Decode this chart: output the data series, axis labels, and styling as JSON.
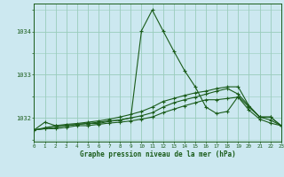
{
  "title": "Graphe pression niveau de la mer (hPa)",
  "bg_color": "#cce8f0",
  "grid_color": "#99ccbb",
  "line_color": "#1a5c1a",
  "ylim": [
    1031.45,
    1034.65
  ],
  "yticks": [
    1032,
    1033,
    1034
  ],
  "xlim": [
    0,
    23
  ],
  "xticks": [
    0,
    1,
    2,
    3,
    4,
    5,
    6,
    7,
    8,
    9,
    10,
    11,
    12,
    13,
    14,
    15,
    16,
    17,
    18,
    19,
    20,
    21,
    22,
    23
  ],
  "series1": [
    1031.72,
    1031.9,
    1031.82,
    1031.82,
    1031.85,
    1031.87,
    1031.9,
    1031.93,
    1031.95,
    1032.0,
    1034.02,
    1034.5,
    1034.02,
    1033.55,
    1033.1,
    1032.72,
    1032.25,
    1032.1,
    1032.15,
    1032.5,
    1032.25,
    1032.02,
    1032.02,
    1031.82
  ],
  "series2": [
    1031.72,
    1031.77,
    1031.82,
    1031.85,
    1031.87,
    1031.9,
    1031.93,
    1031.97,
    1032.02,
    1032.08,
    1032.15,
    1032.25,
    1032.38,
    1032.45,
    1032.52,
    1032.58,
    1032.62,
    1032.68,
    1032.72,
    1032.72,
    1032.28,
    1032.02,
    1032.02,
    1031.82
  ],
  "series3": [
    1031.72,
    1031.75,
    1031.78,
    1031.82,
    1031.85,
    1031.87,
    1031.87,
    1031.92,
    1031.95,
    1032.0,
    1032.05,
    1032.12,
    1032.25,
    1032.35,
    1032.42,
    1032.48,
    1032.55,
    1032.62,
    1032.68,
    1032.55,
    1032.28,
    1032.02,
    1031.95,
    1031.82
  ],
  "series4": [
    1031.72,
    1031.75,
    1031.75,
    1031.78,
    1031.82,
    1031.82,
    1031.85,
    1031.88,
    1031.9,
    1031.93,
    1031.97,
    1032.02,
    1032.12,
    1032.2,
    1032.28,
    1032.35,
    1032.42,
    1032.42,
    1032.45,
    1032.48,
    1032.18,
    1031.97,
    1031.88,
    1031.82
  ]
}
